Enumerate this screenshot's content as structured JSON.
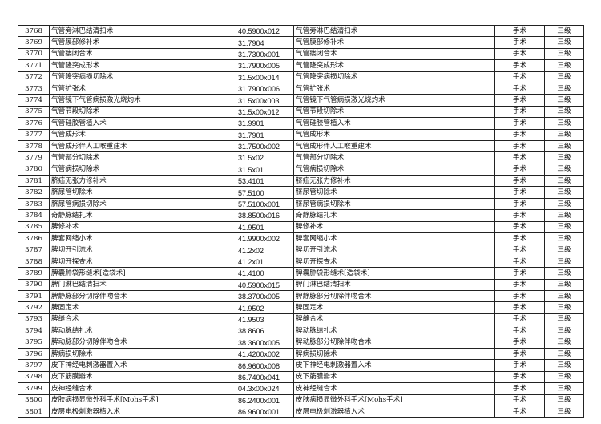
{
  "rows": [
    [
      "3768",
      "气管旁淋巴结清扫术",
      "40.5900x012",
      "气管旁淋巴结清扫术",
      "手术",
      "三级"
    ],
    [
      "3769",
      "气管膜部修补术",
      "31.7904",
      "气管膜部修补术",
      "手术",
      "三级"
    ],
    [
      "3770",
      "气管瘘闭合术",
      "31.7300x001",
      "气管瘘闭合术",
      "手术",
      "三级"
    ],
    [
      "3771",
      "气管隆突成形术",
      "31.7900x005",
      "气管隆突成形术",
      "手术",
      "三级"
    ],
    [
      "3772",
      "气管隆突病损切除术",
      "31.5x00x014",
      "气管隆突病损切除术",
      "手术",
      "三级"
    ],
    [
      "3773",
      "气管扩张术",
      "31.7900x006",
      "气管扩张术",
      "手术",
      "三级"
    ],
    [
      "3774",
      "气管镜下气管病损激光烧灼术",
      "31.5x00x003",
      "气管镜下气管病损激光烧灼术",
      "手术",
      "三级"
    ],
    [
      "3775",
      "气管节段切除术",
      "31.5x00x012",
      "气管节段切除术",
      "手术",
      "三级"
    ],
    [
      "3776",
      "气管硅胶管植入术",
      "31.9901",
      "气管硅胶管植入术",
      "手术",
      "三级"
    ],
    [
      "3777",
      "气管成形术",
      "31.7901",
      "气管成形术",
      "手术",
      "三级"
    ],
    [
      "3778",
      "气管成形伴人工喉重建术",
      "31.7500x002",
      "气管成形伴人工喉重建术",
      "手术",
      "三级"
    ],
    [
      "3779",
      "气管部分切除术",
      "31.5x02",
      "气管部分切除术",
      "手术",
      "三级"
    ],
    [
      "3780",
      "气管病损切除术",
      "31.5x01",
      "气管病损切除术",
      "手术",
      "三级"
    ],
    [
      "3781",
      "脐疝无张力修补术",
      "53.4101",
      "脐疝无张力修补术",
      "手术",
      "三级"
    ],
    [
      "3782",
      "脐尿管切除术",
      "57.5100",
      "脐尿管切除术",
      "手术",
      "三级"
    ],
    [
      "3783",
      "脐尿管病损切除术",
      "57.5100x001",
      "脐尿管病损切除术",
      "手术",
      "三级"
    ],
    [
      "3784",
      "奇静脉结扎术",
      "38.8500x016",
      "奇静脉结扎术",
      "手术",
      "三级"
    ],
    [
      "3785",
      "脾修补术",
      "41.9501",
      "脾修补术",
      "手术",
      "三级"
    ],
    [
      "3786",
      "脾套网缩小术",
      "41.9900x002",
      "脾套网缩小术",
      "手术",
      "三级"
    ],
    [
      "3787",
      "脾切开引流术",
      "41.2x02",
      "脾切开引流术",
      "手术",
      "三级"
    ],
    [
      "3788",
      "脾切开探查术",
      "41.2x01",
      "脾切开探查术",
      "手术",
      "三级"
    ],
    [
      "3789",
      "脾囊肿袋形缝术[造袋术]",
      "41.4100",
      "脾囊肿袋形缝术[造袋术]",
      "手术",
      "三级"
    ],
    [
      "3790",
      "脾门淋巴结清扫术",
      "40.5900x015",
      "脾门淋巴结清扫术",
      "手术",
      "三级"
    ],
    [
      "3791",
      "脾静脉部分切除伴吻合术",
      "38.3700x005",
      "脾静脉部分切除伴吻合术",
      "手术",
      "三级"
    ],
    [
      "3792",
      "脾固定术",
      "41.9502",
      "脾固定术",
      "手术",
      "三级"
    ],
    [
      "3793",
      "脾缝合术",
      "41.9503",
      "脾缝合术",
      "手术",
      "三级"
    ],
    [
      "3794",
      "脾动脉结扎术",
      "38.8606",
      "脾动脉结扎术",
      "手术",
      "三级"
    ],
    [
      "3795",
      "脾动脉部分切除伴吻合术",
      "38.3600x005",
      "脾动脉部分切除伴吻合术",
      "手术",
      "三级"
    ],
    [
      "3796",
      "脾病损切除术",
      "41.4200x002",
      "脾病损切除术",
      "手术",
      "三级"
    ],
    [
      "3797",
      "皮下神经电刺激器置入术",
      "86.9600x008",
      "皮下神经电刺激器置入术",
      "手术",
      "三级"
    ],
    [
      "3798",
      "皮下筋膜瓣术",
      "86.7400x041",
      "皮下筋膜瓣术",
      "手术",
      "三级"
    ],
    [
      "3799",
      "皮神经缝合术",
      "04.3x00x024",
      "皮神经缝合术",
      "手术",
      "三级"
    ],
    [
      "3800",
      "皮肤病损显微外科手术[Mohs手术]",
      "86.2400x001",
      "皮肤病损显微外科手术[Mohs手术]",
      "手术",
      "三级"
    ],
    [
      "3801",
      "皮层电极刺激器植入术",
      "86.9600x001",
      "皮层电极刺激器植入术",
      "手术",
      "三级"
    ]
  ]
}
